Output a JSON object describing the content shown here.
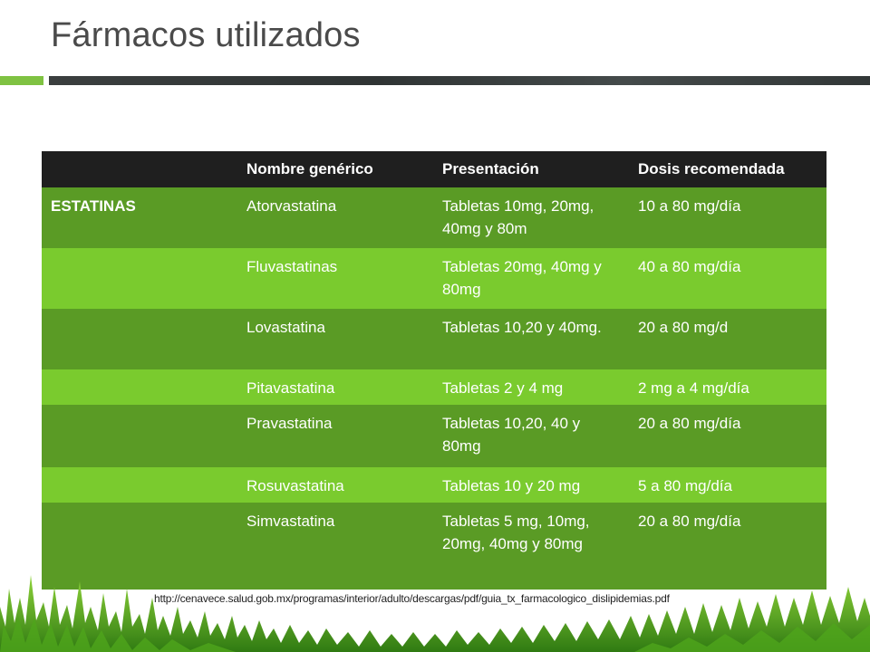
{
  "slide": {
    "title": "Fármacos utilizados"
  },
  "table": {
    "headers": [
      "",
      "Nombre genérico",
      "Presentación",
      "Dosis recomendada"
    ],
    "group_label": "ESTATINAS",
    "rows": [
      {
        "name": "Atorvastatina",
        "presentation": "Tabletas 10mg, 20mg, 40mg y 80m",
        "dose": "10 a 80 mg/día"
      },
      {
        "name": "Fluvastatinas",
        "presentation": "Tabletas 20mg, 40mg y 80mg",
        "dose": "40 a 80 mg/día"
      },
      {
        "name": "Lovastatina",
        "presentation": "Tabletas 10,20 y 40mg.",
        "dose": "20 a 80 mg/d"
      },
      {
        "name": "Pitavastatina",
        "presentation": "Tabletas 2 y 4 mg",
        "dose": "2 mg a 4 mg/día"
      },
      {
        "name": "Pravastatina",
        "presentation": "Tabletas 10,20, 40 y 80mg",
        "dose": "20 a 80 mg/día"
      },
      {
        "name": "Rosuvastatina",
        "presentation": "Tabletas 10 y 20 mg",
        "dose": "5 a 80 mg/día"
      },
      {
        "name": "Simvastatina",
        "presentation": "Tabletas 5 mg, 10mg, 20mg, 40mg y 80mg",
        "dose": "20 a 80 mg/día"
      }
    ]
  },
  "source": {
    "url": "http://cenavece.salud.gob.mx/programas/interior/adulto/descargas/pdf/guia_tx_farmacologico_dislipidemias.pdf"
  },
  "colors": {
    "accent_green": "#7fc242",
    "row_dark": "#5a9b25",
    "row_light": "#7acb2e",
    "header_bg": "#1f1f1f"
  },
  "icons": [
    "grass-decoration"
  ]
}
